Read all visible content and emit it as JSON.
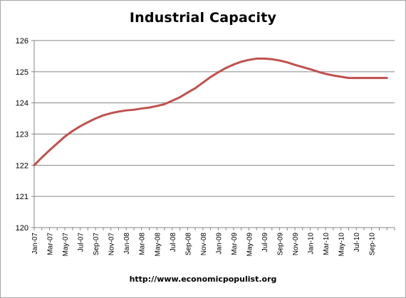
{
  "title": "Industrial Capacity",
  "source": "http://www.economicpopulist.org",
  "colors": {
    "line": "#c0504d",
    "grid": "#868686",
    "axis": "#868686"
  },
  "chart_data": {
    "type": "line",
    "title": "Industrial Capacity",
    "xlabel": "",
    "ylabel": "",
    "ylim": [
      120,
      126
    ],
    "yticks": [
      120,
      121,
      122,
      123,
      124,
      125,
      126
    ],
    "grid": true,
    "legend": "none",
    "tick_labels": [
      "Jan-07",
      "Mar-07",
      "May-07",
      "Jul-07",
      "Sep-07",
      "Nov-07",
      "Jan-08",
      "Mar-08",
      "May-08",
      "Jul-08",
      "Sep-08",
      "Nov-08",
      "Jan-09",
      "Mar-09",
      "May-09",
      "Jul-09",
      "Sep-09",
      "Nov-09",
      "Jan-10",
      "Mar-10",
      "May-10",
      "Jul-10",
      "Sep-10"
    ],
    "x": [
      "Jan-07",
      "Feb-07",
      "Mar-07",
      "Apr-07",
      "May-07",
      "Jun-07",
      "Jul-07",
      "Aug-07",
      "Sep-07",
      "Oct-07",
      "Nov-07",
      "Dec-07",
      "Jan-08",
      "Feb-08",
      "Mar-08",
      "Apr-08",
      "May-08",
      "Jun-08",
      "Jul-08",
      "Aug-08",
      "Sep-08",
      "Oct-08",
      "Nov-08",
      "Dec-08",
      "Jan-09",
      "Feb-09",
      "Mar-09",
      "Apr-09",
      "May-09",
      "Jun-09",
      "Jul-09",
      "Aug-09",
      "Sep-09",
      "Oct-09",
      "Nov-09",
      "Dec-09",
      "Jan-10",
      "Feb-10",
      "Mar-10",
      "Apr-10",
      "May-10",
      "Jun-10",
      "Jul-10",
      "Aug-10",
      "Sep-10",
      "Oct-10",
      "Nov-10"
    ],
    "series": [
      {
        "values": [
          122.0,
          122.25,
          122.48,
          122.7,
          122.92,
          123.1,
          123.25,
          123.38,
          123.5,
          123.6,
          123.67,
          123.72,
          123.76,
          123.78,
          123.82,
          123.85,
          123.9,
          123.96,
          124.07,
          124.18,
          124.33,
          124.47,
          124.65,
          124.83,
          124.98,
          125.12,
          125.23,
          125.32,
          125.38,
          125.42,
          125.42,
          125.4,
          125.36,
          125.3,
          125.22,
          125.15,
          125.08,
          125.0,
          124.93,
          124.88,
          124.84,
          124.8,
          124.8,
          124.8,
          124.8,
          124.8,
          124.8
        ]
      }
    ]
  }
}
